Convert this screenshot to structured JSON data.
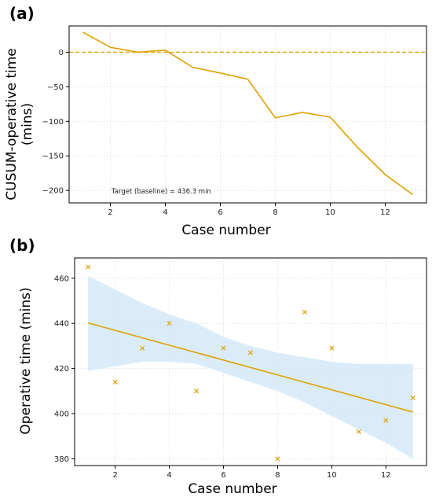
{
  "colors": {
    "line": "#e0a000",
    "band": "#d6eaf8",
    "grid": "#e3e3e3",
    "axis": "#000000"
  },
  "chart_data": [
    {
      "panel_label": "(a)",
      "type": "line",
      "xlabel": "Case number",
      "ylabel_lines": [
        "CUSUM-operative time",
        "(mins)"
      ],
      "xlim": [
        0.5,
        13.5
      ],
      "ylim": [
        -218,
        38
      ],
      "xticks": [
        2,
        4,
        6,
        8,
        10,
        12
      ],
      "yticks": [
        0,
        -50,
        -100,
        -150,
        -200
      ],
      "ytick_labels": [
        "0",
        "−50",
        "−100",
        "−150",
        "−200"
      ],
      "grid": true,
      "reference_line": {
        "y": 0,
        "style": "dashed"
      },
      "annotation": "Target (baseline) = 436.3 min",
      "series": [
        {
          "x": [
            1,
            2,
            3,
            4,
            5,
            6,
            7,
            8,
            9,
            10,
            11,
            12,
            13
          ],
          "y": [
            29,
            7,
            0,
            3,
            -22,
            -30,
            -39,
            -95,
            -87,
            -94,
            -138,
            -177,
            -206
          ]
        }
      ]
    },
    {
      "panel_label": "(b)",
      "type": "scatter",
      "xlabel": "Case number",
      "ylabel_lines": [
        "Operative time (mins)"
      ],
      "xlim": [
        0.5,
        13.5
      ],
      "ylim": [
        377,
        469
      ],
      "xticks": [
        2,
        4,
        6,
        8,
        10,
        12
      ],
      "yticks": [
        380,
        400,
        420,
        440,
        460
      ],
      "ytick_labels": [
        "380",
        "400",
        "420",
        "440",
        "460"
      ],
      "grid": true,
      "marker": "x",
      "points": {
        "x": [
          1,
          2,
          3,
          4,
          5,
          6,
          7,
          8,
          9,
          10,
          11,
          12,
          13
        ],
        "y": [
          465,
          414,
          429,
          440,
          410,
          429,
          427,
          380,
          445,
          429,
          392,
          397,
          407
        ]
      },
      "regression": {
        "x": [
          1,
          13
        ],
        "y": [
          440.2,
          400.7
        ]
      },
      "confidence_band": {
        "x": [
          1,
          2,
          3,
          4,
          5,
          6,
          7,
          8,
          9,
          10,
          11,
          12,
          13
        ],
        "upper": [
          461,
          455,
          449,
          444,
          440,
          434,
          430,
          427,
          425,
          423,
          422,
          422,
          422
        ],
        "lower": [
          419,
          421,
          423,
          423,
          422,
          418,
          414,
          410,
          405,
          399,
          393,
          387,
          380
        ]
      }
    }
  ]
}
